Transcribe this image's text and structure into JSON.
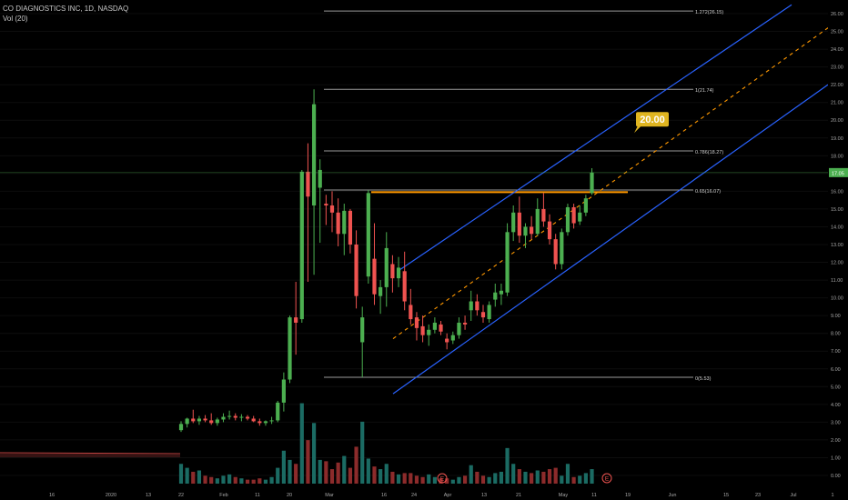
{
  "header": {
    "symbol_line": "CO DIAGNOSTICS INC, 1D, NASDAQ",
    "volume_line": "Vol (20)"
  },
  "price_axis": {
    "labels": [
      "26.00",
      "25.00",
      "24.00",
      "23.00",
      "22.00",
      "21.00",
      "20.00",
      "19.00",
      "18.00",
      "17.00",
      "16.00",
      "15.00",
      "14.00",
      "13.00",
      "12.00",
      "11.00",
      "10.00",
      "9.00",
      "8.00",
      "7.00",
      "6.00",
      "5.00",
      "4.00",
      "3.00",
      "2.00",
      "1.00",
      "0.00"
    ],
    "last_price_label": "17.05"
  },
  "time_axis": {
    "labels": [
      "16",
      "2020",
      "13",
      "22",
      "Feb",
      "11",
      "20",
      "Mar",
      "16",
      "24",
      "Apr",
      "13",
      "21",
      "May",
      "11",
      "19",
      "Jun",
      "15",
      "23",
      "Jul",
      "1"
    ]
  },
  "fib_levels": [
    {
      "label": "1.272(26.15)"
    },
    {
      "label": "1(21.74)"
    },
    {
      "label": "0.786(18.27)"
    },
    {
      "label": "0.65(16.07)"
    },
    {
      "label": "0(5.53)"
    }
  ],
  "target_badge": {
    "label": "20.00"
  },
  "events": [
    {
      "label": "E"
    },
    {
      "label": "E"
    }
  ],
  "colors": {
    "up": "#26a69a",
    "up_bright": "#4caf50",
    "down": "#ef5350",
    "channel": "#2962ff",
    "orange": "#ff9800",
    "badge": "#e0b520",
    "last_price": "#4caf50",
    "background": "#000000"
  },
  "chart_data": {
    "type": "candlestick",
    "symbol": "CO DIAGNOSTICS INC",
    "interval": "1D",
    "exchange": "NASDAQ",
    "ylim": [
      0,
      26.5
    ],
    "last_price": 17.05,
    "fibonacci": [
      {
        "ratio": 1.272,
        "price": 26.15
      },
      {
        "ratio": 1,
        "price": 21.74
      },
      {
        "ratio": 0.786,
        "price": 18.27
      },
      {
        "ratio": 0.65,
        "price": 16.07
      },
      {
        "ratio": 0,
        "price": 5.53
      }
    ],
    "horizontal_level": 15.95,
    "target": 20.0,
    "candles": [
      {
        "o": 2.55,
        "h": 3.05,
        "l": 2.45,
        "c": 2.9
      },
      {
        "o": 2.9,
        "h": 3.25,
        "l": 2.7,
        "c": 3.2
      },
      {
        "o": 3.2,
        "h": 3.7,
        "l": 2.95,
        "c": 3.05
      },
      {
        "o": 3.05,
        "h": 3.35,
        "l": 2.85,
        "c": 3.2
      },
      {
        "o": 3.2,
        "h": 3.4,
        "l": 3.0,
        "c": 3.1
      },
      {
        "o": 3.1,
        "h": 3.5,
        "l": 2.85,
        "c": 2.95
      },
      {
        "o": 2.95,
        "h": 3.25,
        "l": 2.8,
        "c": 3.15
      },
      {
        "o": 3.15,
        "h": 3.5,
        "l": 3.0,
        "c": 3.3
      },
      {
        "o": 3.3,
        "h": 3.65,
        "l": 3.15,
        "c": 3.35
      },
      {
        "o": 3.35,
        "h": 3.5,
        "l": 3.1,
        "c": 3.25
      },
      {
        "o": 3.25,
        "h": 3.45,
        "l": 3.05,
        "c": 3.3
      },
      {
        "o": 3.3,
        "h": 3.4,
        "l": 3.1,
        "c": 3.2
      },
      {
        "o": 3.2,
        "h": 3.35,
        "l": 3.0,
        "c": 3.05
      },
      {
        "o": 3.05,
        "h": 3.2,
        "l": 2.8,
        "c": 2.95
      },
      {
        "o": 2.95,
        "h": 3.1,
        "l": 2.8,
        "c": 3.05
      },
      {
        "o": 3.05,
        "h": 3.3,
        "l": 2.9,
        "c": 3.1
      },
      {
        "o": 3.1,
        "h": 4.2,
        "l": 3.0,
        "c": 4.1
      },
      {
        "o": 4.1,
        "h": 5.8,
        "l": 3.6,
        "c": 5.4
      },
      {
        "o": 5.4,
        "h": 9.0,
        "l": 5.2,
        "c": 8.9
      },
      {
        "o": 8.9,
        "h": 10.9,
        "l": 6.8,
        "c": 8.6
      },
      {
        "o": 8.8,
        "h": 17.2,
        "l": 8.6,
        "c": 17.1
      },
      {
        "o": 17.1,
        "h": 18.7,
        "l": 10.9,
        "c": 15.7
      },
      {
        "o": 15.2,
        "h": 21.74,
        "l": 11.3,
        "c": 20.9
      },
      {
        "o": 16.2,
        "h": 17.8,
        "l": 13.1,
        "c": 17.2
      },
      {
        "o": 15.3,
        "h": 15.8,
        "l": 14.1,
        "c": 15.2
      },
      {
        "o": 15.2,
        "h": 16.0,
        "l": 13.7,
        "c": 14.8
      },
      {
        "o": 14.8,
        "h": 15.6,
        "l": 12.9,
        "c": 13.6
      },
      {
        "o": 13.6,
        "h": 15.3,
        "l": 12.4,
        "c": 14.9
      },
      {
        "o": 14.9,
        "h": 15.0,
        "l": 12.5,
        "c": 13.0
      },
      {
        "o": 13.0,
        "h": 13.8,
        "l": 9.4,
        "c": 10.1
      },
      {
        "o": 7.5,
        "h": 9.5,
        "l": 5.53,
        "c": 8.9
      },
      {
        "o": 11.2,
        "h": 16.07,
        "l": 10.8,
        "c": 15.9
      },
      {
        "o": 12.2,
        "h": 14.2,
        "l": 9.6,
        "c": 10.2
      },
      {
        "o": 10.1,
        "h": 11.0,
        "l": 9.1,
        "c": 10.6
      },
      {
        "o": 10.6,
        "h": 13.7,
        "l": 9.5,
        "c": 12.8
      },
      {
        "o": 11.9,
        "h": 12.4,
        "l": 10.3,
        "c": 11.1
      },
      {
        "o": 11.1,
        "h": 12.3,
        "l": 10.6,
        "c": 11.7
      },
      {
        "o": 11.5,
        "h": 12.6,
        "l": 9.3,
        "c": 9.8
      },
      {
        "o": 9.6,
        "h": 10.5,
        "l": 8.5,
        "c": 8.8
      },
      {
        "o": 8.9,
        "h": 9.2,
        "l": 7.6,
        "c": 8.3
      },
      {
        "o": 8.4,
        "h": 9.0,
        "l": 7.5,
        "c": 7.9
      },
      {
        "o": 7.9,
        "h": 8.5,
        "l": 7.3,
        "c": 8.2
      },
      {
        "o": 8.2,
        "h": 8.9,
        "l": 8.0,
        "c": 8.6
      },
      {
        "o": 8.5,
        "h": 8.7,
        "l": 7.9,
        "c": 8.1
      },
      {
        "o": 7.7,
        "h": 8.0,
        "l": 7.1,
        "c": 7.5
      },
      {
        "o": 7.6,
        "h": 8.1,
        "l": 7.4,
        "c": 7.9
      },
      {
        "o": 7.9,
        "h": 8.9,
        "l": 7.7,
        "c": 8.6
      },
      {
        "o": 8.6,
        "h": 9.0,
        "l": 8.2,
        "c": 8.5
      },
      {
        "o": 9.3,
        "h": 10.4,
        "l": 8.7,
        "c": 9.8
      },
      {
        "o": 9.8,
        "h": 10.2,
        "l": 9.0,
        "c": 9.3
      },
      {
        "o": 9.2,
        "h": 9.6,
        "l": 8.6,
        "c": 8.9
      },
      {
        "o": 8.8,
        "h": 9.8,
        "l": 8.6,
        "c": 9.6
      },
      {
        "o": 9.9,
        "h": 10.8,
        "l": 9.5,
        "c": 10.3
      },
      {
        "o": 10.2,
        "h": 10.8,
        "l": 9.6,
        "c": 10.4
      },
      {
        "o": 10.3,
        "h": 14.2,
        "l": 10.1,
        "c": 13.7
      },
      {
        "o": 13.7,
        "h": 15.2,
        "l": 13.2,
        "c": 14.8
      },
      {
        "o": 14.8,
        "h": 15.7,
        "l": 13.1,
        "c": 13.5
      },
      {
        "o": 13.5,
        "h": 14.2,
        "l": 12.8,
        "c": 14.0
      },
      {
        "o": 14.0,
        "h": 14.6,
        "l": 13.3,
        "c": 13.6
      },
      {
        "o": 13.6,
        "h": 15.6,
        "l": 13.5,
        "c": 15.0
      },
      {
        "o": 15.0,
        "h": 15.9,
        "l": 14.0,
        "c": 14.3
      },
      {
        "o": 14.3,
        "h": 14.7,
        "l": 13.0,
        "c": 13.3
      },
      {
        "o": 13.3,
        "h": 13.6,
        "l": 11.6,
        "c": 11.9
      },
      {
        "o": 11.9,
        "h": 13.9,
        "l": 11.6,
        "c": 13.7
      },
      {
        "o": 13.7,
        "h": 15.3,
        "l": 13.5,
        "c": 15.1
      },
      {
        "o": 15.1,
        "h": 15.3,
        "l": 13.9,
        "c": 14.2
      },
      {
        "o": 14.3,
        "h": 15.2,
        "l": 14.1,
        "c": 14.8
      },
      {
        "o": 14.8,
        "h": 15.8,
        "l": 14.6,
        "c": 15.6
      },
      {
        "o": 15.9,
        "h": 17.3,
        "l": 15.8,
        "c": 17.05
      }
    ],
    "volume": [
      1.5,
      1.2,
      0.9,
      1.0,
      0.6,
      0.5,
      0.4,
      0.6,
      0.7,
      0.5,
      0.4,
      0.3,
      0.3,
      0.4,
      0.3,
      0.5,
      1.2,
      2.5,
      1.8,
      1.5,
      6.1,
      3.3,
      4.6,
      1.8,
      1.7,
      1.1,
      1.6,
      2.1,
      1.2,
      2.8,
      4.7,
      1.9,
      1.3,
      1.1,
      1.5,
      0.9,
      0.7,
      0.8,
      0.8,
      0.6,
      0.5,
      0.7,
      0.5,
      0.4,
      0.4,
      0.3,
      0.5,
      0.6,
      1.4,
      0.9,
      0.6,
      0.5,
      0.8,
      0.9,
      2.7,
      1.5,
      1.1,
      0.9,
      0.8,
      1.0,
      0.9,
      1.1,
      1.2,
      0.6,
      1.5,
      0.5,
      0.6,
      0.8,
      1.1
    ]
  }
}
